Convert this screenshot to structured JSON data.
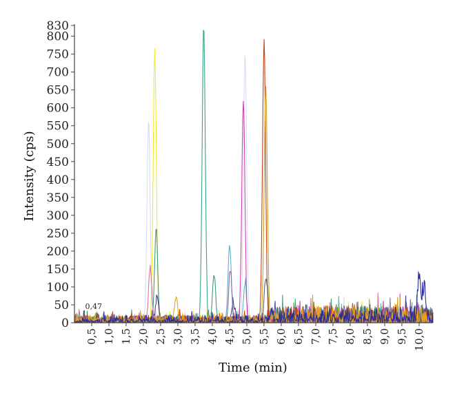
{
  "chart_data": {
    "type": "line",
    "title": "",
    "xlabel": "Time (min)",
    "ylabel": "Intensity (cps)",
    "xlim": [
      0,
      10.4
    ],
    "ylim": [
      0,
      830
    ],
    "y_ticks": [
      0,
      50,
      100,
      150,
      200,
      250,
      300,
      350,
      400,
      450,
      500,
      550,
      600,
      650,
      700,
      750,
      800,
      830
    ],
    "x_ticks": [
      {
        "v": 0.5,
        "label": "0,5"
      },
      {
        "v": 1.0,
        "label": "1,0"
      },
      {
        "v": 1.5,
        "label": "1,5"
      },
      {
        "v": 2.0,
        "label": "2,0"
      },
      {
        "v": 2.5,
        "label": "2,5"
      },
      {
        "v": 3.0,
        "label": "3,0"
      },
      {
        "v": 3.5,
        "label": "3,5"
      },
      {
        "v": 4.0,
        "label": "4,0"
      },
      {
        "v": 4.5,
        "label": "4,5"
      },
      {
        "v": 5.0,
        "label": "5,0"
      },
      {
        "v": 5.5,
        "label": "5,5"
      },
      {
        "v": 6.0,
        "label": "6,0"
      },
      {
        "v": 6.5,
        "label": "6,5"
      },
      {
        "v": 7.0,
        "label": "7,0"
      },
      {
        "v": 7.5,
        "label": "7,5"
      },
      {
        "v": 8.0,
        "label": "8,0"
      },
      {
        "v": 8.5,
        "label": "8,5"
      },
      {
        "v": 9.0,
        "label": "9,0"
      },
      {
        "v": 9.5,
        "label": "9,5"
      },
      {
        "v": 10.0,
        "label": "10,0"
      }
    ],
    "grid": false,
    "legend": "none",
    "annotations": [
      {
        "text": "0,47",
        "x": 0.47,
        "y": 35
      }
    ],
    "series": [
      {
        "color": "#d8dcf0",
        "peaks": [
          [
            2.15,
            560
          ],
          [
            4.95,
            745
          ]
        ]
      },
      {
        "color": "#f0ea3a",
        "peaks": [
          [
            2.33,
            755
          ]
        ]
      },
      {
        "color": "#3a9a70",
        "peaks": [
          [
            2.37,
            260
          ],
          [
            4.05,
            130
          ]
        ]
      },
      {
        "color": "#d07a9a",
        "peaks": [
          [
            2.2,
            150
          ]
        ]
      },
      {
        "color": "#4a3a8a",
        "peaks": [
          [
            2.4,
            70
          ],
          [
            4.6,
            50
          ]
        ]
      },
      {
        "color": "#3aa28a",
        "peaks": [
          [
            3.75,
            825
          ]
        ]
      },
      {
        "color": "#60b0c8",
        "peaks": [
          [
            4.5,
            215
          ],
          [
            4.95,
            105
          ]
        ]
      },
      {
        "color": "#8a6aa0",
        "peaks": [
          [
            4.52,
            145
          ]
        ]
      },
      {
        "color": "#d040b0",
        "peaks": [
          [
            4.9,
            615
          ]
        ]
      },
      {
        "color": "#c04010",
        "peaks": [
          [
            5.5,
            770
          ]
        ]
      },
      {
        "color": "#c8a028",
        "peaks": [
          [
            5.55,
            650
          ]
        ]
      },
      {
        "color": "#606060",
        "peaks": [
          [
            5.55,
            120
          ]
        ]
      },
      {
        "color": "#e8a020",
        "peaks": [
          [
            2.95,
            65
          ]
        ]
      },
      {
        "color": "#2a2a9a",
        "peaks": [
          [
            10.0,
            118
          ],
          [
            10.15,
            90
          ]
        ]
      }
    ]
  }
}
